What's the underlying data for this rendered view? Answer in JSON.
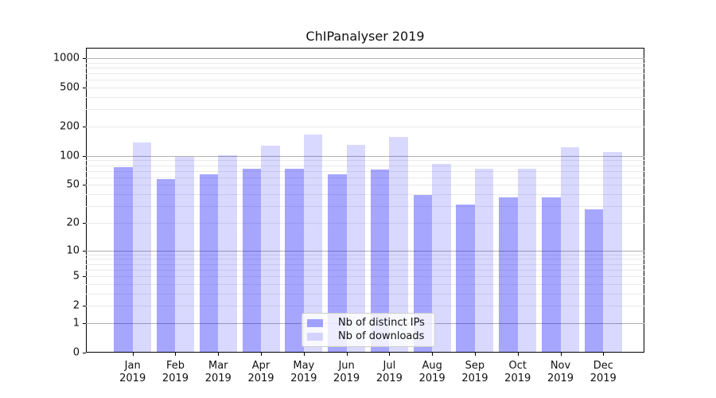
{
  "chart_data": {
    "type": "bar",
    "title": "ChIPanalyser 2019",
    "categories": [
      "Jan 2019",
      "Feb 2019",
      "Mar 2019",
      "Apr 2019",
      "May 2019",
      "Jun 2019",
      "Jul 2019",
      "Aug 2019",
      "Sep 2019",
      "Oct 2019",
      "Nov 2019",
      "Dec 2019"
    ],
    "series": [
      {
        "name": "Nb of distinct IPs",
        "color": "rgba(0,0,255,0.35)",
        "flat_color": "#a6a6ff",
        "values": [
          77,
          58,
          65,
          74,
          74,
          65,
          72,
          39,
          31,
          37,
          37,
          28
        ]
      },
      {
        "name": "Nb of downloads",
        "color": "rgba(0,0,255,0.15)",
        "flat_color": "#d9d9ff",
        "values": [
          137,
          97,
          102,
          127,
          166,
          131,
          158,
          82,
          74,
          73,
          122,
          110
        ]
      }
    ],
    "yscale": "log1p",
    "yticks": [
      0,
      1,
      2,
      5,
      10,
      20,
      50,
      100,
      200,
      500,
      1000
    ],
    "ylim": [
      0,
      1275
    ],
    "xlabel": "",
    "ylabel": "",
    "grid": "on",
    "grid_major_values": [
      1,
      10,
      100,
      1000
    ],
    "grid_major_color": "#b0b0b0",
    "grid_minor_color": "#eaeaea",
    "legend_position": "lower center"
  }
}
